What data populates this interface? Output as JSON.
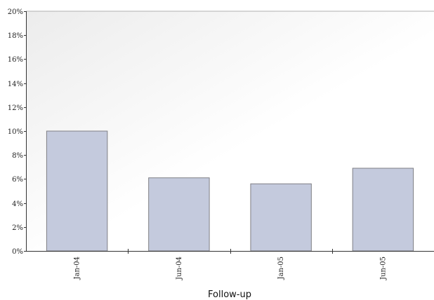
{
  "chart_data": {
    "type": "bar",
    "title": "",
    "xlabel": "Follow-up",
    "ylabel": "",
    "categories": [
      "Jan-04",
      "Jun-04",
      "Jan-05",
      "Jun-05"
    ],
    "values": [
      10.0,
      6.1,
      5.6,
      6.9
    ],
    "ylim": [
      0,
      20
    ],
    "y_ticks": [
      0,
      2,
      4,
      6,
      8,
      10,
      12,
      14,
      16,
      18,
      20
    ],
    "y_tick_labels": [
      "0%",
      "2%",
      "4%",
      "6%",
      "8%",
      "10%",
      "12%",
      "14%",
      "16%",
      "18%",
      "20%"
    ],
    "bar_color": "#c4cadd",
    "bar_edge_color": "#7f7f85",
    "grid": false,
    "legend": "none"
  }
}
